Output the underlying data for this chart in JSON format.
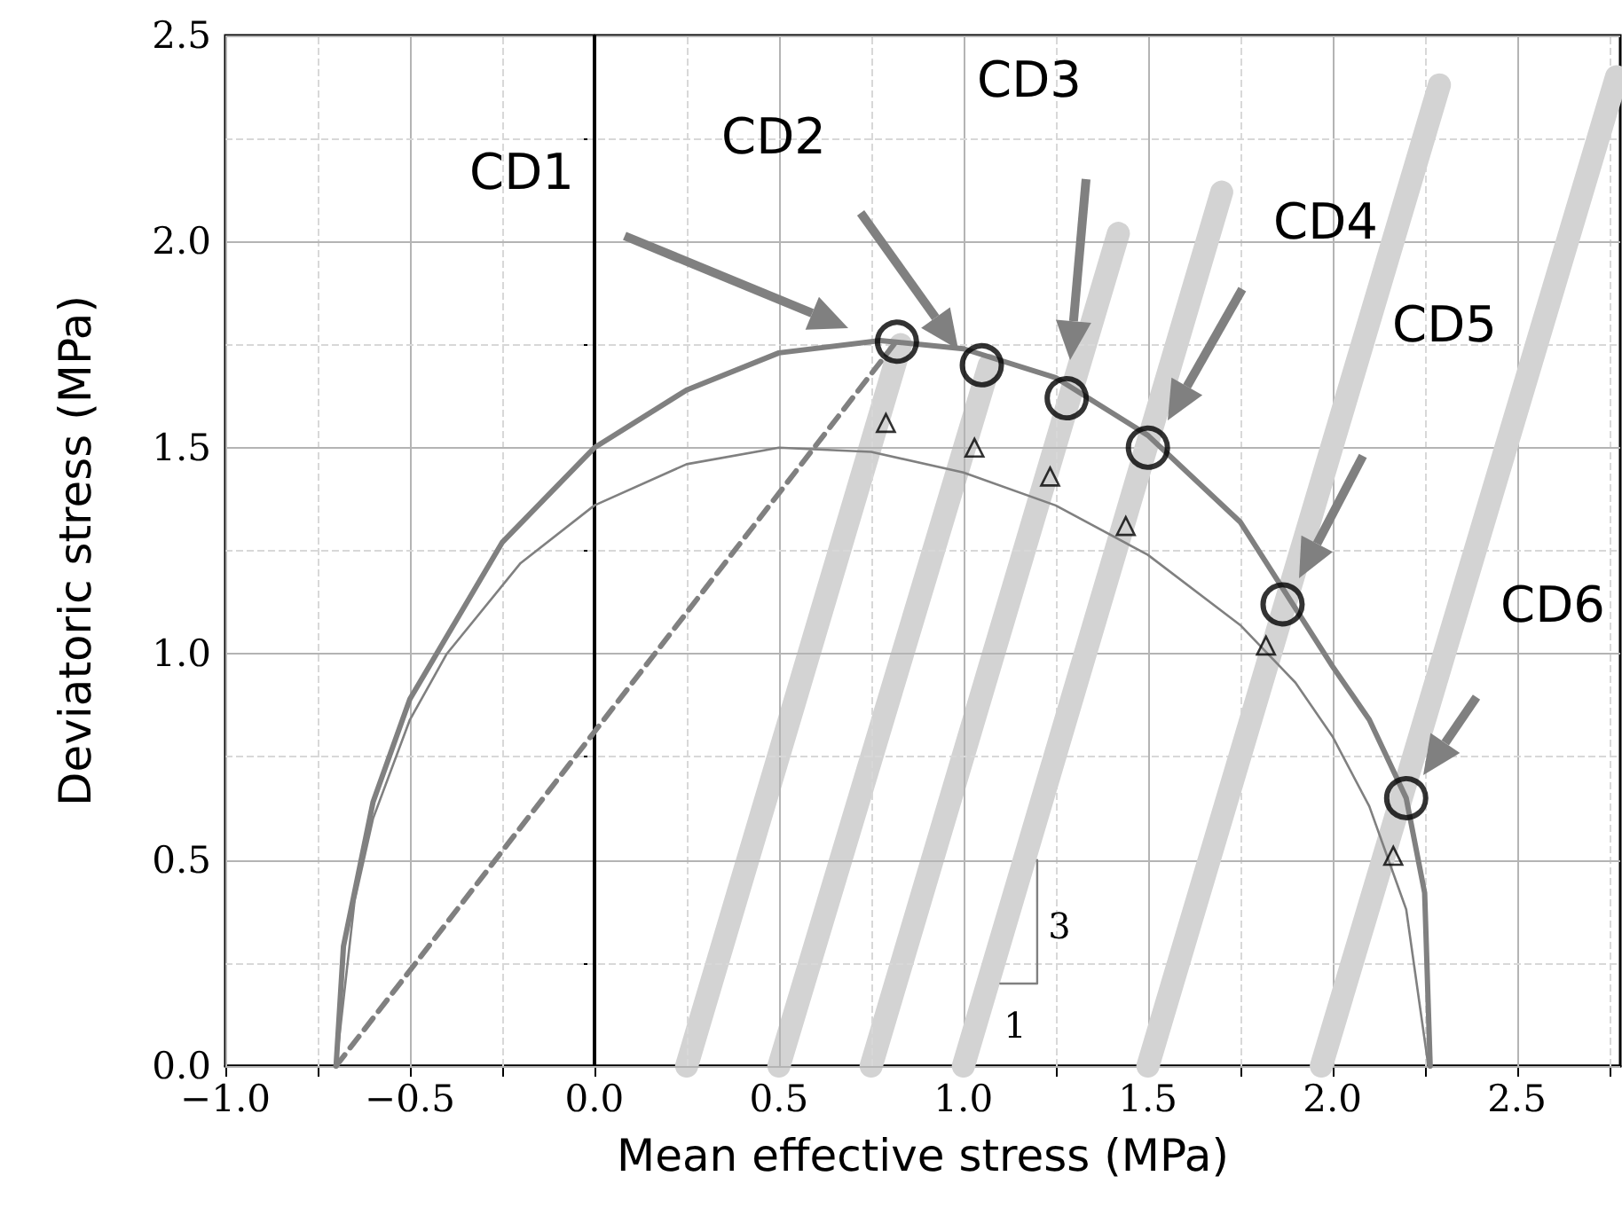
{
  "chart_data": {
    "type": "line",
    "xlabel": "Mean effective stress (MPa)",
    "ylabel": "Deviatoric stress (MPa)",
    "xlim": [
      -1,
      2.78
    ],
    "ylim": [
      0,
      2.5
    ],
    "xticks": [
      {
        "value": -1,
        "label": "−1.0"
      },
      {
        "value": -0.75,
        "label": null
      },
      {
        "value": -0.5,
        "label": "−0.5"
      },
      {
        "value": -0.25,
        "label": null
      },
      {
        "value": 0,
        "label": "0.0"
      },
      {
        "value": 0.25,
        "label": null
      },
      {
        "value": 0.5,
        "label": "0.5"
      },
      {
        "value": 0.75,
        "label": null
      },
      {
        "value": 1,
        "label": "1.0"
      },
      {
        "value": 1.25,
        "label": null
      },
      {
        "value": 1.5,
        "label": "1.5"
      },
      {
        "value": 1.75,
        "label": null
      },
      {
        "value": 2,
        "label": "2.0"
      },
      {
        "value": 2.25,
        "label": null
      },
      {
        "value": 2.5,
        "label": "2.5"
      },
      {
        "value": 2.75,
        "label": null
      }
    ],
    "yticks": [
      {
        "value": 0,
        "label": "0.0"
      },
      {
        "value": 0.25,
        "label": null
      },
      {
        "value": 0.5,
        "label": "0.5"
      },
      {
        "value": 0.75,
        "label": null
      },
      {
        "value": 1,
        "label": "1.0"
      },
      {
        "value": 1.25,
        "label": null
      },
      {
        "value": 1.5,
        "label": "1.5"
      },
      {
        "value": 1.75,
        "label": null
      },
      {
        "value": 2,
        "label": "2.0"
      },
      {
        "value": 2.25,
        "label": null
      },
      {
        "value": 2.5,
        "label": "2.5"
      }
    ],
    "grid": true,
    "ref_lines": [
      {
        "axis": "x",
        "value": 0,
        "color": "#000000"
      }
    ],
    "series": [
      {
        "color": "#d3d3d3",
        "marker": "none",
        "line_style": "solid",
        "x": [
          0.25,
          0.83
        ],
        "values": [
          0,
          1.75
        ]
      },
      {
        "color": "#d3d3d3",
        "marker": "none",
        "line_style": "solid",
        "x": [
          0.5,
          1.07
        ],
        "values": [
          0,
          1.7
        ]
      },
      {
        "color": "#d3d3d3",
        "marker": "none",
        "line_style": "solid",
        "x": [
          0.75,
          1.42
        ],
        "values": [
          0,
          2.02
        ]
      },
      {
        "color": "#d3d3d3",
        "marker": "none",
        "line_style": "solid",
        "x": [
          1.0,
          1.7
        ],
        "values": [
          0,
          2.12
        ]
      },
      {
        "color": "#d3d3d3",
        "marker": "none",
        "line_style": "solid",
        "x": [
          1.5,
          2.29
        ],
        "values": [
          0,
          2.38
        ]
      },
      {
        "color": "#d3d3d3",
        "marker": "none",
        "line_style": "solid",
        "x": [
          1.97,
          2.77
        ],
        "values": [
          0,
          2.4
        ]
      },
      {
        "color": "#808080",
        "marker": "none",
        "line_style": "solid",
        "x": [
          -0.7,
          -0.68,
          -0.6,
          -0.5,
          -0.25,
          0,
          0.25,
          0.5,
          0.775,
          1.0,
          1.25,
          1.5,
          1.75,
          2.0,
          2.1,
          2.2,
          2.25,
          2.265
        ],
        "values": [
          0,
          0.29,
          0.64,
          0.89,
          1.27,
          1.5,
          1.64,
          1.73,
          1.76,
          1.74,
          1.67,
          1.53,
          1.32,
          0.97,
          0.84,
          0.65,
          0.42,
          0
        ]
      },
      {
        "color": "#808080",
        "marker": "none",
        "line_style": "solid",
        "x": [
          -0.7,
          -0.65,
          -0.6,
          -0.5,
          -0.4,
          -0.2,
          0,
          0.25,
          0.5,
          0.75,
          1.0,
          1.25,
          1.5,
          1.75,
          1.9,
          2.0,
          2.1,
          2.2,
          2.26
        ],
        "values": [
          0,
          0.4,
          0.6,
          0.84,
          1.0,
          1.22,
          1.36,
          1.46,
          1.5,
          1.49,
          1.44,
          1.36,
          1.24,
          1.07,
          0.93,
          0.8,
          0.63,
          0.38,
          0
        ]
      },
      {
        "color": "#808080",
        "marker": "none",
        "line_style": "dashed",
        "x": [
          -0.7,
          0.82
        ],
        "values": [
          0,
          1.76
        ]
      },
      {
        "type": "scatter",
        "color": "#000000",
        "marker": "circle",
        "x": [
          0.82,
          1.05,
          1.28,
          1.5,
          1.865,
          2.2
        ],
        "values": [
          1.757,
          1.7,
          1.62,
          1.5,
          1.12,
          0.65
        ]
      },
      {
        "type": "scatter",
        "color": "#000000",
        "marker": "triangle",
        "x": [
          0.79,
          1.03,
          1.235,
          1.44,
          1.82,
          2.165
        ],
        "values": [
          1.56,
          1.5,
          1.43,
          1.31,
          1.02,
          0.51
        ]
      },
      {
        "color": "#808080",
        "marker": "none",
        "line_style": "solid",
        "x": [
          1.1,
          1.2,
          1.2
        ],
        "values": [
          0.2,
          0.2,
          0.5
        ]
      }
    ],
    "annotations": [
      "CD1",
      "CD2",
      "CD3",
      "CD4",
      "CD5",
      "CD6",
      "3",
      "1"
    ]
  }
}
